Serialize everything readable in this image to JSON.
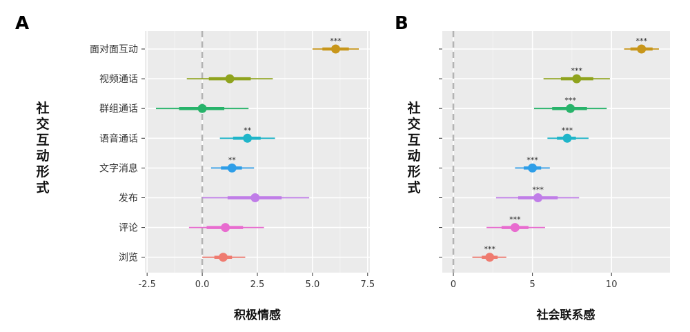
{
  "chart_data": [
    {
      "type": "forest",
      "panel": "A",
      "xlabel": "积极情感",
      "ylabel": [
        "社",
        "交",
        "互",
        "动",
        "形",
        "式"
      ],
      "xlim": [
        -2.6,
        7.6
      ],
      "xticks": [
        -2.5,
        0.0,
        2.5,
        5.0,
        7.5
      ],
      "xtick_labels": [
        "-2.5",
        "0.0",
        "2.5",
        "5.0",
        "7.5"
      ],
      "categories": [
        "面对面互动",
        "视频通话",
        "群组通话",
        "语音通话",
        "文字消息",
        "发布",
        "评论",
        "浏览"
      ],
      "colors": [
        "#c8961a",
        "#8fa31d",
        "#27b36a",
        "#1fb5c9",
        "#2e9ee8",
        "#c07de8",
        "#e86ccf",
        "#ef7b70"
      ],
      "estimates": [
        6.05,
        1.25,
        0.0,
        2.05,
        1.35,
        2.4,
        1.05,
        0.95
      ],
      "ci_inner": [
        [
          5.45,
          6.65
        ],
        [
          0.3,
          2.2
        ],
        [
          -1.05,
          1.0
        ],
        [
          1.4,
          2.65
        ],
        [
          0.85,
          1.8
        ],
        [
          1.15,
          3.6
        ],
        [
          0.2,
          1.85
        ],
        [
          0.55,
          1.35
        ]
      ],
      "ci_outer": [
        [
          5.0,
          7.1
        ],
        [
          -0.7,
          3.2
        ],
        [
          -2.1,
          2.1
        ],
        [
          0.8,
          3.3
        ],
        [
          0.4,
          2.35
        ],
        [
          0.0,
          4.85
        ],
        [
          -0.6,
          2.8
        ],
        [
          0.0,
          1.95
        ]
      ],
      "sig": [
        "***",
        "",
        "",
        "**",
        "**",
        "",
        "",
        ""
      ]
    },
    {
      "type": "forest",
      "panel": "B",
      "xlabel": "社会联系感",
      "ylabel": [
        "社",
        "交",
        "互",
        "动",
        "形",
        "式"
      ],
      "xlim": [
        -0.7,
        13.7
      ],
      "xticks": [
        0,
        5,
        10
      ],
      "xtick_labels": [
        "0",
        "5",
        "10"
      ],
      "categories": [
        "面对面互动",
        "视频通话",
        "群组通话",
        "语音通话",
        "文字消息",
        "发布",
        "评论",
        "浏览"
      ],
      "colors": [
        "#c8961a",
        "#8fa31d",
        "#27b36a",
        "#1fb5c9",
        "#2e9ee8",
        "#c07de8",
        "#e86ccf",
        "#ef7b70"
      ],
      "estimates": [
        11.9,
        7.8,
        7.4,
        7.2,
        5.0,
        5.35,
        3.9,
        2.3
      ],
      "ci_inner": [
        [
          11.2,
          12.6
        ],
        [
          6.8,
          8.85
        ],
        [
          6.25,
          8.45
        ],
        [
          6.55,
          7.75
        ],
        [
          4.45,
          5.55
        ],
        [
          4.1,
          6.6
        ],
        [
          3.05,
          4.75
        ],
        [
          1.8,
          2.8
        ]
      ],
      "ci_outer": [
        [
          10.8,
          13.0
        ],
        [
          5.7,
          9.9
        ],
        [
          5.1,
          9.7
        ],
        [
          5.95,
          8.55
        ],
        [
          3.9,
          6.1
        ],
        [
          2.7,
          7.95
        ],
        [
          2.1,
          5.8
        ],
        [
          1.2,
          3.35
        ]
      ],
      "sig": [
        "***",
        "***",
        "***",
        "***",
        "***",
        "***",
        "***",
        "***"
      ]
    }
  ]
}
